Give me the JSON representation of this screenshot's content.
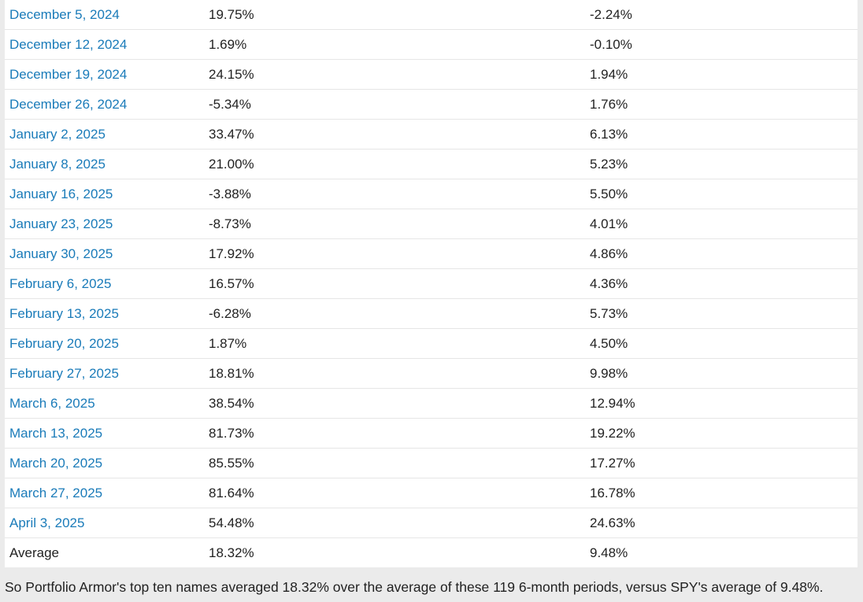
{
  "table": {
    "rows": [
      {
        "date": "December 5, 2024",
        "portfolio": "19.75%",
        "spy": "-2.24%",
        "link": true
      },
      {
        "date": "December 12, 2024",
        "portfolio": "1.69%",
        "spy": "-0.10%",
        "link": true
      },
      {
        "date": "December 19, 2024",
        "portfolio": "24.15%",
        "spy": "1.94%",
        "link": true
      },
      {
        "date": "December 26, 2024",
        "portfolio": "-5.34%",
        "spy": "1.76%",
        "link": true
      },
      {
        "date": "January 2, 2025",
        "portfolio": "33.47%",
        "spy": "6.13%",
        "link": true
      },
      {
        "date": "January 8, 2025",
        "portfolio": "21.00%",
        "spy": "5.23%",
        "link": true
      },
      {
        "date": "January 16, 2025",
        "portfolio": "-3.88%",
        "spy": "5.50%",
        "link": true
      },
      {
        "date": "January 23, 2025",
        "portfolio": "-8.73%",
        "spy": "4.01%",
        "link": true
      },
      {
        "date": "January 30, 2025",
        "portfolio": "17.92%",
        "spy": "4.86%",
        "link": true
      },
      {
        "date": "February 6, 2025",
        "portfolio": "16.57%",
        "spy": "4.36%",
        "link": true
      },
      {
        "date": "February 13, 2025",
        "portfolio": "-6.28%",
        "spy": "5.73%",
        "link": true
      },
      {
        "date": "February 20, 2025",
        "portfolio": "1.87%",
        "spy": "4.50%",
        "link": true
      },
      {
        "date": "February 27, 2025",
        "portfolio": "18.81%",
        "spy": "9.98%",
        "link": true
      },
      {
        "date": "March 6, 2025",
        "portfolio": "38.54%",
        "spy": "12.94%",
        "link": true
      },
      {
        "date": "March 13, 2025",
        "portfolio": "81.73%",
        "spy": "19.22%",
        "link": true
      },
      {
        "date": "March 20, 2025",
        "portfolio": "85.55%",
        "spy": "17.27%",
        "link": true
      },
      {
        "date": "March 27, 2025",
        "portfolio": "81.64%",
        "spy": "16.78%",
        "link": true
      },
      {
        "date": "April 3, 2025",
        "portfolio": "54.48%",
        "spy": "24.63%",
        "link": true
      },
      {
        "date": "Average",
        "portfolio": "18.32%",
        "spy": "9.48%",
        "link": false
      }
    ]
  },
  "summary": "So Portfolio Armor's top ten names averaged 18.32% over the average of these 119 6-month periods, versus SPY's average of 9.48%.",
  "colors": {
    "link": "#1a7bb9",
    "text": "#222222",
    "page_background": "#ebebeb",
    "table_background": "#ffffff"
  }
}
